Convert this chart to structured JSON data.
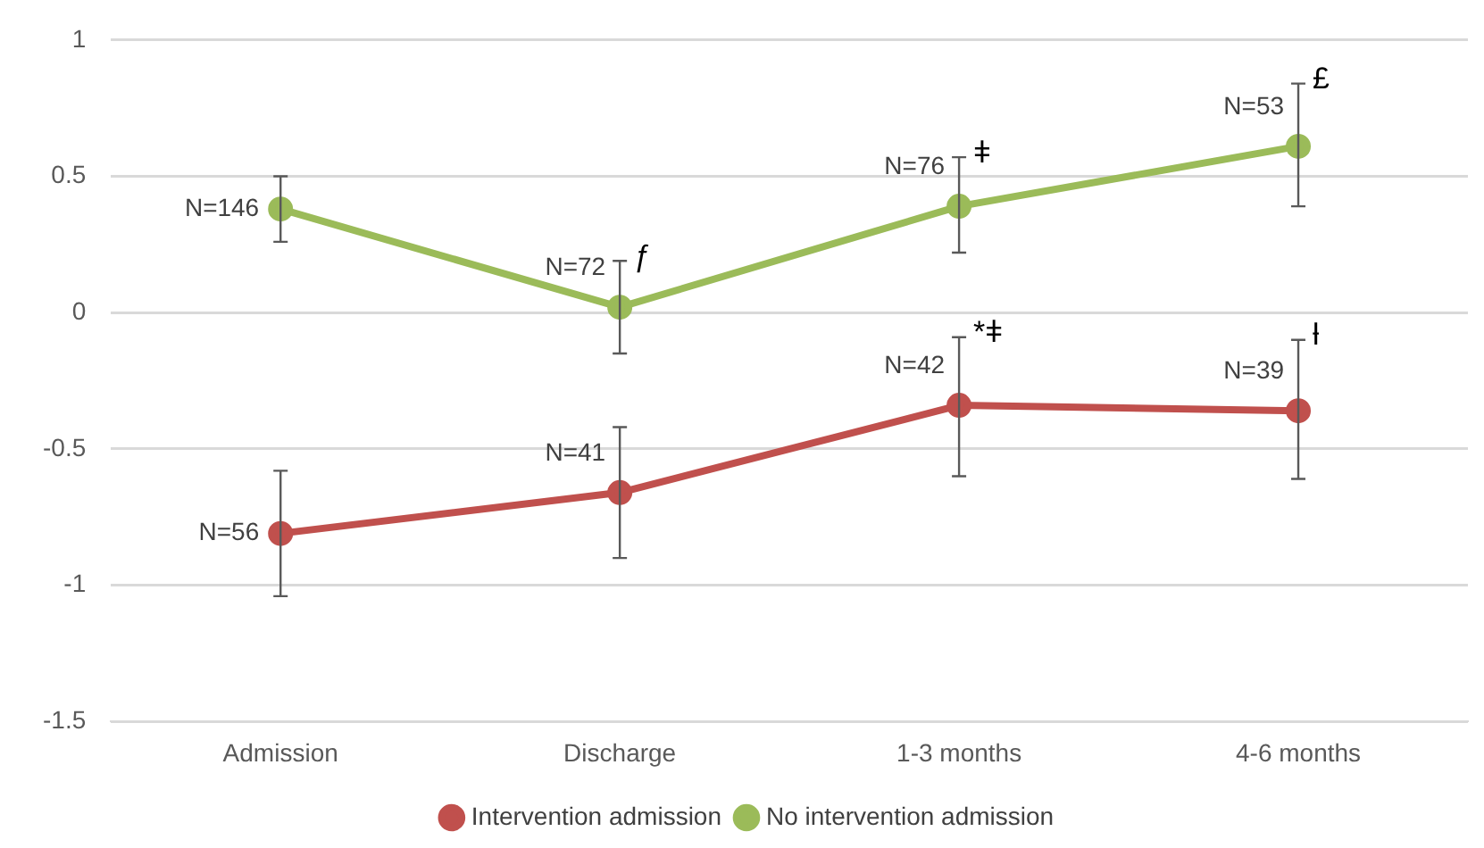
{
  "chart_data": {
    "type": "line",
    "categories": [
      "Admission",
      "Discharge",
      "1-3 months",
      "4-6 months"
    ],
    "series": [
      {
        "name": "Intervention admission",
        "color": "#c0504d",
        "values": [
          -0.81,
          -0.66,
          -0.34,
          -0.36
        ],
        "errors": [
          [
            -1.04,
            -0.58
          ],
          [
            -0.9,
            -0.42
          ],
          [
            -0.6,
            -0.09
          ],
          [
            -0.61,
            -0.1
          ]
        ]
      },
      {
        "name": "No intervention admission",
        "color": "#9bbb59",
        "values": [
          0.38,
          0.02,
          0.39,
          0.61
        ],
        "errors": [
          [
            0.26,
            0.5
          ],
          [
            -0.15,
            0.19
          ],
          [
            0.22,
            0.57
          ],
          [
            0.39,
            0.84
          ]
        ]
      }
    ],
    "ylim": [
      -1.5,
      1
    ],
    "yticks": [
      {
        "value": -1.5,
        "label": "-1.5"
      },
      {
        "value": -1,
        "label": "-1"
      },
      {
        "value": -0.5,
        "label": "-0.5"
      },
      0,
      {
        "value": 0.5,
        "label": "0.5"
      },
      1
    ],
    "grid": "y",
    "legend": "bottom",
    "marker": "circle",
    "line_style": "solid",
    "annotations": [
      {
        "text": "N=56",
        "x": "Admission",
        "y": -0.81
      },
      {
        "text": "N=41",
        "x": "Discharge",
        "y": -0.66
      },
      {
        "text": "N=42",
        "x": "1-3 months",
        "y": -0.34
      },
      {
        "text": "N=39",
        "x": "4-6 months",
        "y": -0.36
      },
      {
        "text": "N=146",
        "x": "Admission",
        "y": 0.38
      },
      {
        "text": "N=72",
        "x": "Discharge",
        "y": 0.02
      },
      {
        "text": "N=76",
        "x": "1-3 months",
        "y": 0.39
      },
      {
        "text": "N=53",
        "x": "4-6 months",
        "y": 0.61
      },
      {
        "text": "ƒ",
        "x": "Discharge",
        "y": 0.19
      },
      {
        "text": "ǂ",
        "x": "1-3 months",
        "y": 0.57
      },
      {
        "text": "£",
        "x": "4-6 months",
        "y": 0.84
      },
      {
        "text": "*ǂ",
        "x": "1-3 months",
        "y": -0.09
      },
      {
        "text": "ƚ",
        "x": "4-6 months",
        "y": -0.1
      }
    ]
  }
}
